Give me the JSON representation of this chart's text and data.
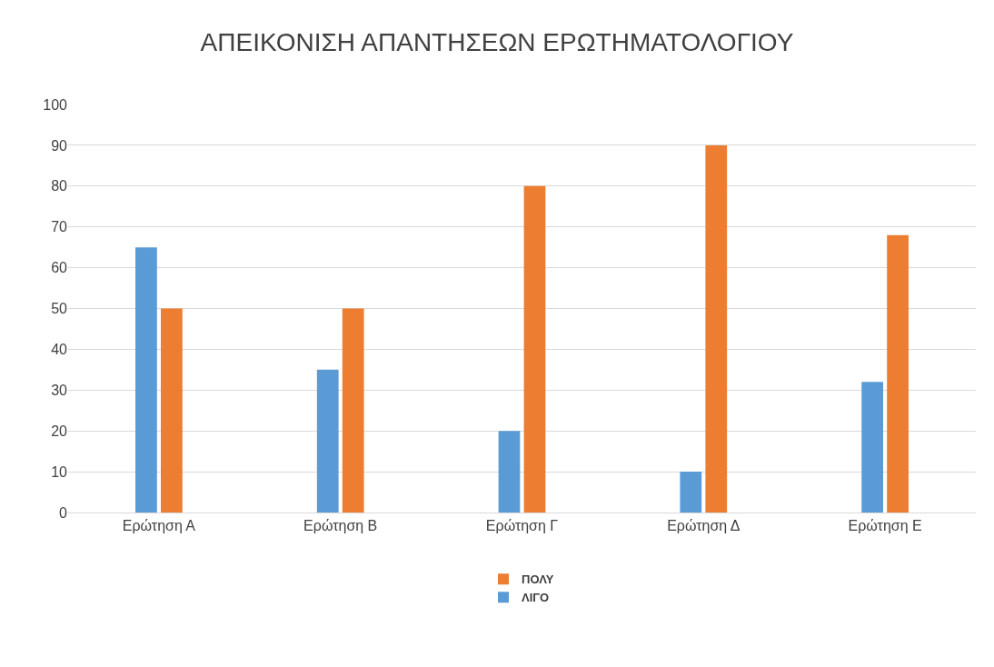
{
  "chart_data": {
    "type": "bar",
    "title": "ΑΠΕΙΚΟΝΙΣΗ ΑΠΑΝΤΗΣΕΩΝ ΕΡΩΤΗΜΑΤΟΛΟΓΙΟΥ",
    "categories": [
      "Ερώτηση Α",
      "Ερώτηση Β",
      "Ερώτηση Γ",
      "Ερώτηση Δ",
      "Ερώτηση Ε"
    ],
    "series": [
      {
        "name": "ΛΙΓΟ",
        "color": "#5b9bd5",
        "values": [
          65,
          35,
          20,
          10,
          32
        ]
      },
      {
        "name": "ΠΟΛΥ",
        "color": "#ed7d31",
        "values": [
          50,
          50,
          80,
          90,
          68
        ]
      }
    ],
    "ylim": [
      0,
      100
    ],
    "yticks": [
      0,
      10,
      20,
      30,
      40,
      50,
      60,
      70,
      80,
      90,
      100
    ],
    "grid": "y",
    "legend": "bottom"
  }
}
